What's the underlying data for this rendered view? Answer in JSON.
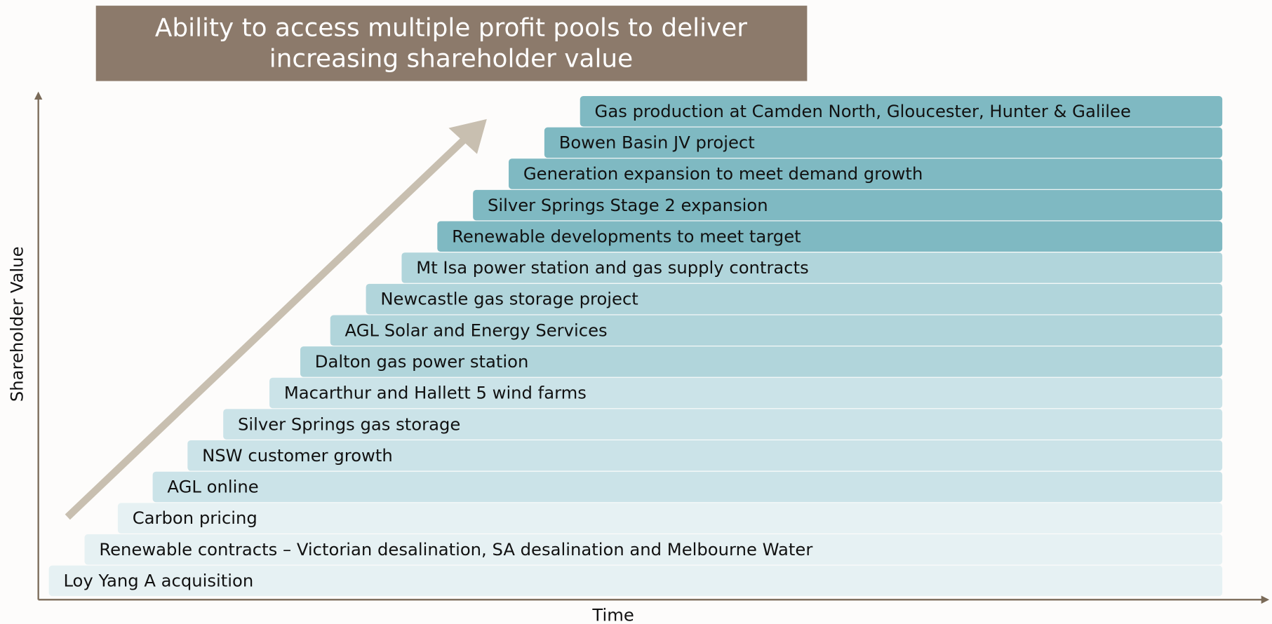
{
  "header": {
    "title": [
      "Ability to access multiple profit pools to deliver",
      "increasing shareholder value"
    ]
  },
  "axes": {
    "y_label": "Shareholder Value",
    "x_label": "Time"
  },
  "steps": [
    {
      "label": "Loy Yang A acquisition",
      "color": "#e6f1f3"
    },
    {
      "label": "Renewable contracts – Victorian desalination, SA desalination and Melbourne Water",
      "color": "#e6f1f3"
    },
    {
      "label": "Carbon pricing",
      "color": "#e6f1f3"
    },
    {
      "label": "AGL online",
      "color": "#cbe3e8"
    },
    {
      "label": "NSW customer growth",
      "color": "#cbe3e8"
    },
    {
      "label": "Silver Springs gas storage",
      "color": "#cbe3e8"
    },
    {
      "label": "Macarthur and Hallett 5 wind farms",
      "color": "#cbe3e8"
    },
    {
      "label": "Dalton gas power station",
      "color": "#b1d5db"
    },
    {
      "label": "AGL Solar and Energy Services",
      "color": "#b1d5db"
    },
    {
      "label": "Newcastle gas storage project",
      "color": "#b1d5db"
    },
    {
      "label": "Mt Isa power station and gas supply contracts",
      "color": "#b1d5db"
    },
    {
      "label": "Renewable developments to meet target",
      "color": "#7fb9c2"
    },
    {
      "label": "Silver Springs Stage 2 expansion",
      "color": "#7fb9c2"
    },
    {
      "label": "Generation expansion to meet demand growth",
      "color": "#7fb9c2"
    },
    {
      "label": "Bowen Basin JV project",
      "color": "#7fb9c2"
    },
    {
      "label": "Gas production at Camden North, Gloucester, Hunter & Galilee",
      "color": "#7fb9c2"
    }
  ]
}
